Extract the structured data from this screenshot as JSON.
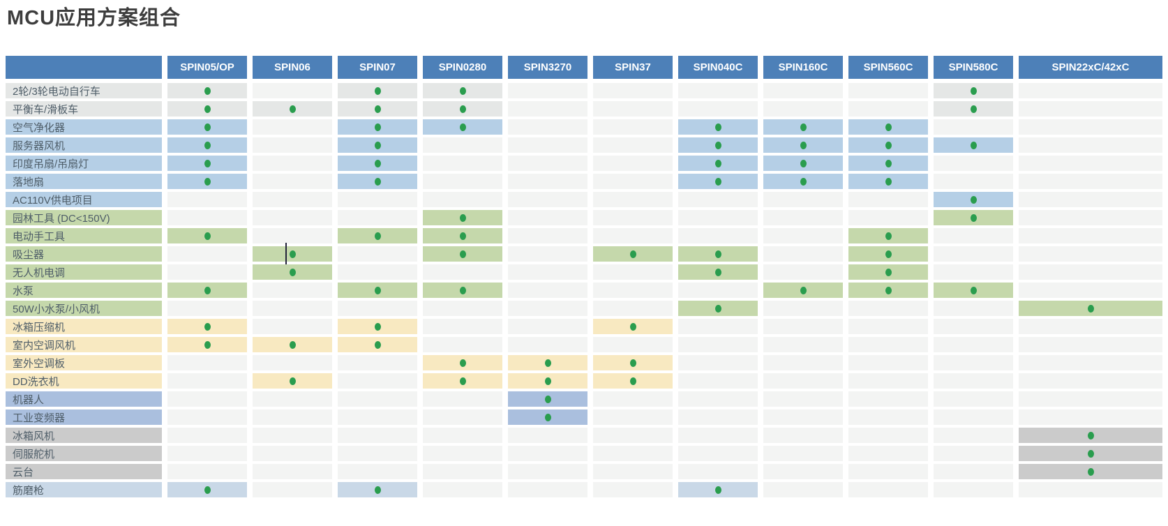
{
  "title": "MCU应用方案组合",
  "colors": {
    "header_bg": "#4d80b8",
    "header_text": "#ffffff",
    "dot": "#2a9d4e",
    "empty_cell": "#f3f4f3",
    "label_text": "#4e5d68",
    "title_text": "#3d3d3d",
    "groups": {
      "gray-light": "#e5e7e6",
      "blue": "#b5cfe6",
      "green": "#c5d8ab",
      "yellow": "#f8e9c1",
      "periwinkle": "#aabfde",
      "gray": "#cbcbcb",
      "lightblue": "#c9d8e7"
    }
  },
  "chart_data": {
    "type": "table",
    "title": "MCU应用方案组合",
    "legend_note": "green dot = chip supports application; cell tinted with row group color",
    "columns": [
      "SPIN05/OP",
      "SPIN06",
      "SPIN07",
      "SPIN0280",
      "SPIN3270",
      "SPIN37",
      "SPIN040C",
      "SPIN160C",
      "SPIN560C",
      "SPIN580C",
      "SPIN22xC/42xC"
    ],
    "rows": [
      {
        "label": "2轮/3轮电动自行车",
        "group": "gray-light",
        "dots": [
          1,
          0,
          1,
          1,
          0,
          0,
          0,
          0,
          0,
          1,
          0
        ]
      },
      {
        "label": "平衡车/滑板车",
        "group": "gray-light",
        "dots": [
          1,
          1,
          1,
          1,
          0,
          0,
          0,
          0,
          0,
          1,
          0
        ]
      },
      {
        "label": "空气净化器",
        "group": "blue",
        "dots": [
          1,
          0,
          1,
          1,
          0,
          0,
          1,
          1,
          1,
          0,
          0
        ]
      },
      {
        "label": "服务器风机",
        "group": "blue",
        "dots": [
          1,
          0,
          1,
          0,
          0,
          0,
          1,
          1,
          1,
          1,
          0
        ]
      },
      {
        "label": "印度吊扇/吊扇灯",
        "group": "blue",
        "dots": [
          1,
          0,
          1,
          0,
          0,
          0,
          1,
          1,
          1,
          0,
          0
        ]
      },
      {
        "label": "落地扇",
        "group": "blue",
        "dots": [
          1,
          0,
          1,
          0,
          0,
          0,
          1,
          1,
          1,
          0,
          0
        ]
      },
      {
        "label": "AC110V供电项目",
        "group": "blue",
        "dots": [
          0,
          0,
          0,
          0,
          0,
          0,
          0,
          0,
          0,
          1,
          0
        ]
      },
      {
        "label": "园林工具 (DC<150V)",
        "group": "green",
        "dots": [
          0,
          0,
          0,
          1,
          0,
          0,
          0,
          0,
          0,
          1,
          0
        ]
      },
      {
        "label": "电动手工具",
        "group": "green",
        "dots": [
          1,
          0,
          1,
          1,
          0,
          0,
          0,
          0,
          1,
          0,
          0
        ]
      },
      {
        "label": "吸尘器",
        "group": "green",
        "dots": [
          0,
          1,
          0,
          1,
          0,
          1,
          1,
          0,
          1,
          0,
          0
        ],
        "caret_col": 1
      },
      {
        "label": "无人机电调",
        "group": "green",
        "dots": [
          0,
          1,
          0,
          0,
          0,
          0,
          1,
          0,
          1,
          0,
          0
        ]
      },
      {
        "label": "水泵",
        "group": "green",
        "dots": [
          1,
          0,
          1,
          1,
          0,
          0,
          0,
          1,
          1,
          1,
          0
        ]
      },
      {
        "label": "50W小水泵/小风机",
        "group": "green",
        "dots": [
          0,
          0,
          0,
          0,
          0,
          0,
          1,
          0,
          0,
          0,
          1
        ]
      },
      {
        "label": "冰箱压缩机",
        "group": "yellow",
        "dots": [
          1,
          0,
          1,
          0,
          0,
          1,
          0,
          0,
          0,
          0,
          0
        ]
      },
      {
        "label": "室内空调风机",
        "group": "yellow",
        "dots": [
          1,
          1,
          1,
          0,
          0,
          0,
          0,
          0,
          0,
          0,
          0
        ]
      },
      {
        "label": "室外空调板",
        "group": "yellow",
        "dots": [
          0,
          0,
          0,
          1,
          1,
          1,
          0,
          0,
          0,
          0,
          0
        ]
      },
      {
        "label": "DD洗衣机",
        "group": "yellow",
        "dots": [
          0,
          1,
          0,
          1,
          1,
          1,
          0,
          0,
          0,
          0,
          0
        ]
      },
      {
        "label": "机器人",
        "group": "periwinkle",
        "dots": [
          0,
          0,
          0,
          0,
          1,
          0,
          0,
          0,
          0,
          0,
          0
        ]
      },
      {
        "label": "工业变频器",
        "group": "periwinkle",
        "dots": [
          0,
          0,
          0,
          0,
          1,
          0,
          0,
          0,
          0,
          0,
          0
        ]
      },
      {
        "label": "冰箱风机",
        "group": "gray",
        "dots": [
          0,
          0,
          0,
          0,
          0,
          0,
          0,
          0,
          0,
          0,
          1
        ]
      },
      {
        "label": "伺服舵机",
        "group": "gray",
        "dots": [
          0,
          0,
          0,
          0,
          0,
          0,
          0,
          0,
          0,
          0,
          1
        ]
      },
      {
        "label": "云台",
        "group": "gray",
        "dots": [
          0,
          0,
          0,
          0,
          0,
          0,
          0,
          0,
          0,
          0,
          1
        ]
      },
      {
        "label": "筋磨枪",
        "group": "lightblue",
        "dots": [
          1,
          0,
          1,
          0,
          0,
          0,
          1,
          0,
          0,
          0,
          0
        ]
      }
    ]
  }
}
